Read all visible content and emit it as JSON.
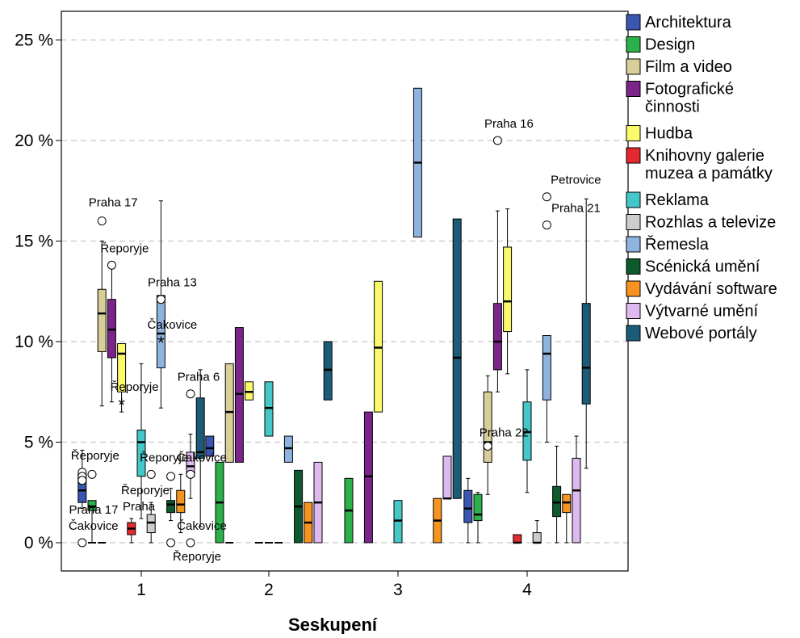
{
  "chart_data": {
    "type": "boxplot",
    "xlabel": "Seskupení",
    "ylabel": "",
    "categories": [
      "1",
      "2",
      "3",
      "4"
    ],
    "ylim": [
      -1.2,
      26.5
    ],
    "y_ticks": [
      0,
      5,
      10,
      15,
      20,
      25
    ],
    "y_tick_labels": [
      "0 %",
      "5 %",
      "10 %",
      "15 %",
      "20 %",
      "25 %"
    ],
    "grid": "horizontal dashed",
    "legend_position": "right",
    "colors": {
      "Architektura": "#3a56b0",
      "Design": "#2bb04a",
      "Film a video": "#d8cf98",
      "Fotografické činnosti": "#7b2489",
      "Hudba": "#fafa6b",
      "Knihovny galerie muzea a památky": "#e52a2f",
      "Reklama": "#44c7c7",
      "Rozhlas a televize": "#cdcdcd",
      "Řemesla": "#8fb3df",
      "Scénická umění": "#0e5a2c",
      "Vydávání software": "#f79420",
      "Výtvarné umění": "#ddb9f0",
      "Webové portály": "#1c5c78"
    },
    "series": [
      {
        "name": "Architektura",
        "legend_lines": [
          "Architektura"
        ],
        "boxes": [
          {
            "min": 1.7,
            "q1": 2.0,
            "median": 2.6,
            "q3": 3.4,
            "max": 4.6
          },
          {
            "min": 4.3,
            "q1": 4.3,
            "median": 4.7,
            "q3": 5.3,
            "max": 5.3
          },
          null,
          {
            "min": 0.0,
            "q1": 1.0,
            "median": 1.7,
            "q3": 2.6,
            "max": 3.2
          }
        ]
      },
      {
        "name": "Design",
        "legend_lines": [
          "Design"
        ],
        "boxes": [
          {
            "min": 0.0,
            "q1": 1.6,
            "median": 1.8,
            "q3": 2.1,
            "max": 2.1
          },
          {
            "min": 0.0,
            "q1": 0.0,
            "median": 2.0,
            "q3": 4.0,
            "max": 4.0
          },
          {
            "min": 0.0,
            "q1": 0.0,
            "median": 1.6,
            "q3": 3.2,
            "max": 3.2
          },
          {
            "min": 0.0,
            "q1": 1.1,
            "median": 1.4,
            "q3": 2.4,
            "max": 2.5
          }
        ]
      },
      {
        "name": "Film a video",
        "legend_lines": [
          "Film a video"
        ],
        "boxes": [
          {
            "min": 6.8,
            "q1": 9.5,
            "median": 11.4,
            "q3": 12.6,
            "max": 15.0
          },
          {
            "min": 4.0,
            "q1": 4.0,
            "median": 6.5,
            "q3": 8.9,
            "max": 8.9
          },
          null,
          {
            "min": 2.4,
            "q1": 4.0,
            "median": 5.0,
            "q3": 7.5,
            "max": 8.3
          }
        ]
      },
      {
        "name": "Fotografické činnosti",
        "legend_lines": [
          "Fotografické",
          "činnosti"
        ],
        "boxes": [
          {
            "min": 7.0,
            "q1": 9.2,
            "median": 10.6,
            "q3": 12.1,
            "max": 13.8
          },
          {
            "min": 4.0,
            "q1": 4.0,
            "median": 7.4,
            "q3": 10.7,
            "max": 10.7
          },
          {
            "min": 0.0,
            "q1": 0.0,
            "median": 3.3,
            "q3": 6.5,
            "max": 6.5
          },
          {
            "min": 7.5,
            "q1": 8.6,
            "median": 10.0,
            "q3": 11.9,
            "max": 16.5
          }
        ]
      },
      {
        "name": "Hudba",
        "legend_lines": [
          "Hudba"
        ],
        "boxes": [
          {
            "min": 6.5,
            "q1": 7.5,
            "median": 9.4,
            "q3": 9.9,
            "max": 9.9
          },
          {
            "min": 7.1,
            "q1": 7.1,
            "median": 7.5,
            "q3": 8.0,
            "max": 8.0
          },
          {
            "min": 6.5,
            "q1": 6.5,
            "median": 9.7,
            "q3": 13.0,
            "max": 13.0
          },
          {
            "min": 8.4,
            "q1": 10.5,
            "median": 12.0,
            "q3": 14.7,
            "max": 16.6
          }
        ]
      },
      {
        "name": "Knihovny galerie muzea a památky",
        "legend_lines": [
          "Knihovny galerie",
          "muzea a památky"
        ],
        "boxes": [
          {
            "min": 0.0,
            "q1": 0.4,
            "median": 0.7,
            "q3": 1.0,
            "max": 1.2
          },
          null,
          null,
          {
            "min": 0.0,
            "q1": 0.0,
            "median": 0.0,
            "q3": 0.4,
            "max": 0.4
          }
        ]
      },
      {
        "name": "Reklama",
        "legend_lines": [
          "Reklama"
        ],
        "boxes": [
          {
            "min": 1.2,
            "q1": 3.3,
            "median": 5.0,
            "q3": 5.6,
            "max": 8.9
          },
          {
            "min": 5.3,
            "q1": 5.3,
            "median": 6.7,
            "q3": 8.0,
            "max": 8.0
          },
          {
            "min": 0.0,
            "q1": 0.0,
            "median": 1.1,
            "q3": 2.1,
            "max": 2.1
          },
          {
            "min": 2.5,
            "q1": 4.1,
            "median": 5.5,
            "q3": 7.0,
            "max": 8.6
          }
        ]
      },
      {
        "name": "Rozhlas a televize",
        "legend_lines": [
          "Rozhlas a televize"
        ],
        "boxes": [
          {
            "min": 0.0,
            "q1": 0.5,
            "median": 1.0,
            "q3": 1.4,
            "max": 2.0
          },
          null,
          null,
          {
            "min": 0.0,
            "q1": 0.0,
            "median": 0.0,
            "q3": 0.5,
            "max": 1.1
          }
        ]
      },
      {
        "name": "Řemesla",
        "legend_lines": [
          "Řemesla"
        ],
        "boxes": [
          {
            "min": 6.7,
            "q1": 8.7,
            "median": 10.4,
            "q3": 12.3,
            "max": 17.0
          },
          {
            "min": 4.0,
            "q1": 4.0,
            "median": 4.7,
            "q3": 5.3,
            "max": 5.3
          },
          {
            "min": 15.2,
            "q1": 15.2,
            "median": 18.9,
            "q3": 22.6,
            "max": 22.6
          },
          {
            "min": 5.0,
            "q1": 7.1,
            "median": 9.4,
            "q3": 10.3,
            "max": 10.3
          }
        ]
      },
      {
        "name": "Scénická umění",
        "legend_lines": [
          "Scénická umění"
        ],
        "boxes": [
          {
            "min": 1.1,
            "q1": 1.5,
            "median": 1.9,
            "q3": 2.1,
            "max": 2.7
          },
          {
            "min": 0.0,
            "q1": 0.0,
            "median": 1.8,
            "q3": 3.6,
            "max": 3.6
          },
          null,
          {
            "min": 0.0,
            "q1": 1.3,
            "median": 2.0,
            "q3": 2.8,
            "max": 4.8
          }
        ]
      },
      {
        "name": "Vydávání software",
        "legend_lines": [
          "Vydávání software"
        ],
        "boxes": [
          {
            "min": 0.5,
            "q1": 1.5,
            "median": 1.9,
            "q3": 2.6,
            "max": 3.4
          },
          {
            "min": 0.0,
            "q1": 0.0,
            "median": 1.0,
            "q3": 2.0,
            "max": 2.0
          },
          {
            "min": 0.0,
            "q1": 0.0,
            "median": 1.1,
            "q3": 2.2,
            "max": 2.2
          },
          {
            "min": 0.0,
            "q1": 1.5,
            "median": 2.0,
            "q3": 2.4,
            "max": 2.4
          }
        ]
      },
      {
        "name": "Výtvarné umění",
        "legend_lines": [
          "Výtvarné umění"
        ],
        "boxes": [
          {
            "min": 2.2,
            "q1": 3.3,
            "median": 3.8,
            "q3": 4.5,
            "max": 5.4
          },
          {
            "min": 0.0,
            "q1": 0.0,
            "median": 2.0,
            "q3": 4.0,
            "max": 4.0
          },
          {
            "min": 2.2,
            "q1": 2.2,
            "median": 2.2,
            "q3": 4.3,
            "max": 4.3
          },
          {
            "min": 0.0,
            "q1": 0.0,
            "median": 2.6,
            "q3": 4.2,
            "max": 5.3
          }
        ]
      },
      {
        "name": "Webové portály",
        "legend_lines": [
          "Webové portály"
        ],
        "boxes": [
          {
            "min": 0.8,
            "q1": 4.2,
            "median": 4.5,
            "q3": 7.2,
            "max": 8.6
          },
          {
            "min": 7.1,
            "q1": 7.1,
            "median": 8.6,
            "q3": 10.0,
            "max": 10.0
          },
          {
            "min": 2.2,
            "q1": 2.2,
            "median": 9.2,
            "q3": 16.1,
            "max": 16.1
          },
          {
            "min": 3.7,
            "q1": 6.9,
            "median": 8.7,
            "q3": 11.9,
            "max": 17.1
          }
        ]
      }
    ],
    "flat_lines": [
      {
        "group": 1,
        "series": "Design",
        "value": 0.0
      },
      {
        "group": 1,
        "series": "Film a video",
        "value": 0.0
      },
      {
        "group": 2,
        "series": "Film a video",
        "value": 0.0
      },
      {
        "group": 2,
        "series": "Knihovny galerie muzea a památky",
        "value": 0.0
      },
      {
        "group": 2,
        "series": "Reklama",
        "value": 0.0
      },
      {
        "group": 2,
        "series": "Rozhlas a televize",
        "value": 0.0
      }
    ],
    "outliers": [
      {
        "group": 1,
        "series": "Architektura",
        "value": 3.5,
        "marker": "circle",
        "label": "Řeporyje"
      },
      {
        "group": 1,
        "series": "Architektura",
        "value": 3.3,
        "marker": "circle",
        "label": ""
      },
      {
        "group": 1,
        "series": "Architektura",
        "value": 3.1,
        "marker": "circle",
        "label": ""
      },
      {
        "group": 1,
        "series": "Architektura",
        "value": 0.0,
        "marker": "circle",
        "label": "Čakovice"
      },
      {
        "group": 1,
        "series": "Design",
        "value": 3.4,
        "marker": "circle",
        "label": ""
      },
      {
        "group": 1,
        "series": "Film a video",
        "value": 16.0,
        "marker": "circle",
        "label": "Praha 17"
      },
      {
        "group": 1,
        "series": "Fotografické činnosti",
        "value": 13.8,
        "marker": "circle",
        "label": "Řeporyje"
      },
      {
        "group": 1,
        "series": "Hudba",
        "value": 6.9,
        "marker": "star",
        "label": "Řeporyje"
      },
      {
        "group": 1,
        "series": "Rozhlas a televize",
        "value": 3.4,
        "marker": "circle",
        "label": "Řeporyje"
      },
      {
        "group": 1,
        "series": "Řemesla",
        "value": 12.1,
        "marker": "circle",
        "label": "Praha 13"
      },
      {
        "group": 1,
        "series": "Řemesla",
        "value": 10.0,
        "marker": "star",
        "label": "Čakovice"
      },
      {
        "group": 1,
        "series": "Scénická umění",
        "value": 3.3,
        "marker": "circle",
        "label": ""
      },
      {
        "group": 1,
        "series": "Scénická umění",
        "value": 0.0,
        "marker": "circle",
        "label": ""
      },
      {
        "group": 1,
        "series": "Výtvarné umění",
        "value": 7.4,
        "marker": "circle",
        "label": "Praha 6"
      },
      {
        "group": 1,
        "series": "Výtvarné umění",
        "value": 3.4,
        "marker": "circle",
        "label": "Čakovice"
      },
      {
        "group": 1,
        "series": "Výtvarné umění",
        "value": 0.0,
        "marker": "circle",
        "label": "Čakovice"
      },
      {
        "group": 4,
        "series": "Film a video",
        "value": 4.8,
        "marker": "circle",
        "label": "Praha 22"
      },
      {
        "group": 4,
        "series": "Fotografické činnosti",
        "value": 20.0,
        "marker": "circle",
        "label": "Praha 16"
      },
      {
        "group": 4,
        "series": "Řemesla",
        "value": 17.2,
        "marker": "circle",
        "label": "Petrovice"
      },
      {
        "group": 4,
        "series": "Řemesla",
        "value": 15.8,
        "marker": "circle",
        "label": "Praha 21"
      }
    ],
    "annotations": [
      "Praha 17",
      "Praha",
      "Řeporyje",
      "Řeporyje"
    ]
  }
}
